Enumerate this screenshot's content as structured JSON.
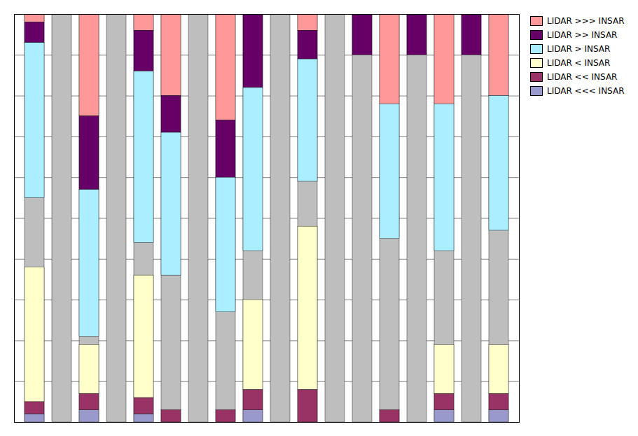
{
  "chart_data": {
    "type": "bar",
    "stacked": true,
    "categories": [
      null,
      null,
      null,
      null,
      null,
      null,
      null,
      null,
      null,
      null,
      null,
      null,
      null,
      null,
      null,
      null,
      null,
      null
    ],
    "series": [
      {
        "name": "LIDAR >>> INSAR",
        "color": "#FF9999",
        "values": [
          2,
          0,
          25,
          0,
          4,
          20,
          0,
          26,
          0,
          0,
          4,
          0,
          0,
          22,
          0,
          22,
          0,
          20
        ]
      },
      {
        "name": "LIDAR >> INSAR",
        "color": "#660066",
        "values": [
          5,
          0,
          18,
          0,
          10,
          9,
          0,
          14,
          18,
          0,
          7,
          0,
          10,
          0,
          10,
          0,
          10,
          0
        ]
      },
      {
        "name": "LIDAR > INSAR",
        "color": "#AAEEFF",
        "values": [
          38,
          0,
          36,
          0,
          42,
          35,
          0,
          33,
          40,
          0,
          30,
          0,
          0,
          33,
          0,
          36,
          0,
          33
        ]
      },
      {
        "name": "LIDAR < INSAR",
        "color": "#FFFFCC",
        "values": [
          33,
          0,
          12,
          0,
          30,
          0,
          0,
          0,
          22,
          0,
          40,
          0,
          0,
          0,
          0,
          12,
          0,
          12
        ]
      },
      {
        "name": "LIDAR << INSAR",
        "color": "#993366",
        "values": [
          3,
          0,
          4,
          0,
          4,
          3,
          0,
          3,
          5,
          0,
          8,
          0,
          0,
          3,
          0,
          4,
          0,
          4
        ]
      },
      {
        "name": "LIDAR <<< INSAR",
        "color": "#9999CC",
        "values": [
          2,
          0,
          3,
          0,
          2,
          0,
          0,
          0,
          3,
          0,
          0,
          0,
          0,
          0,
          0,
          3,
          0,
          3
        ]
      }
    ],
    "color": "#BEBEBE",
    "ylim": [
      0,
      100
    ],
    "yticks": [
      0,
      10,
      20,
      30,
      40,
      50,
      60,
      70,
      80,
      90,
      100
    ],
    "grid": true,
    "legend": "upper right",
    "tick_labels": false
  }
}
